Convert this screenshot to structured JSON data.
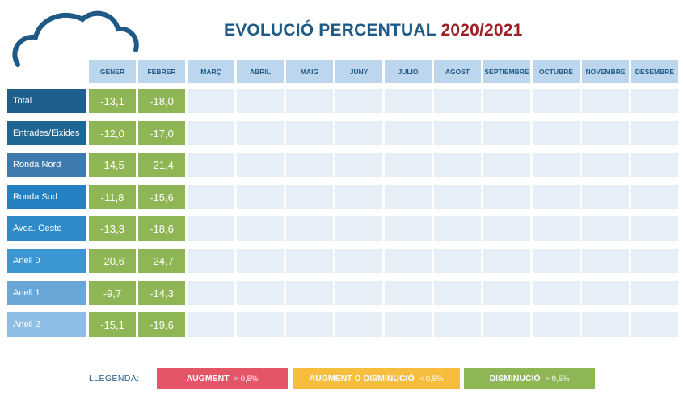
{
  "title": {
    "main": "EVOLUCIÓ PERCENTUAL",
    "year": "2020/2021"
  },
  "colors": {
    "title_blue": "#1f5a86",
    "title_red": "#9b2226",
    "increase": "#e35567",
    "neutral": "#f7bd3f",
    "decrease": "#8fb655",
    "header_bg": "#bcd6ee",
    "empty_cell": "#e6eef8"
  },
  "chart_data": {
    "type": "table",
    "title": "EVOLUCIÓ PERCENTUAL 2020/2021",
    "columns": [
      "GENER",
      "FEBRER",
      "MARÇ",
      "ABRIL",
      "MAIG",
      "JUNY",
      "JULIO",
      "AGOST",
      "SEPTIEMBRE",
      "OCTUBRE",
      "NOVEMBRE",
      "DESEMBRE"
    ],
    "rows": [
      {
        "label": "Total",
        "color": "#1e5f8c",
        "values": [
          "-13,1",
          "-18,0"
        ]
      },
      {
        "label": "Entrades/Eixides",
        "color": "#1e6694",
        "values": [
          "-12,0",
          "-17,0"
        ]
      },
      {
        "label": "Ronda Nord",
        "color": "#3d7aad",
        "values": [
          "-14,5",
          "-21,4"
        ]
      },
      {
        "label": "Ronda Sud",
        "color": "#2582c2",
        "values": [
          "-11,8",
          "-15,6"
        ]
      },
      {
        "label": "Avda. Oeste",
        "color": "#2e8ac8",
        "values": [
          "-13,3",
          "-18,6"
        ]
      },
      {
        "label": "Anell 0",
        "color": "#3b96d2",
        "values": [
          "-20,6",
          "-24,7"
        ]
      },
      {
        "label": "Anell 1",
        "color": "#69a7d9",
        "values": [
          "-9,7",
          "-14,3"
        ]
      },
      {
        "label": "Anell 2",
        "color": "#8ebde5",
        "values": [
          "-15,1",
          "-19,6"
        ]
      }
    ]
  },
  "legend": {
    "label": "LLEGENDA:",
    "items": [
      {
        "text": "AUGMENT",
        "threshold": "> 0,5%",
        "color": "#e35567"
      },
      {
        "text": "AUGMENT O DISMINUCIÓ",
        "threshold": "< 0,5%",
        "color": "#f7bd3f"
      },
      {
        "text": "DISMINUCIÓ",
        "threshold": "> 0,5%",
        "color": "#8fb655"
      }
    ]
  }
}
